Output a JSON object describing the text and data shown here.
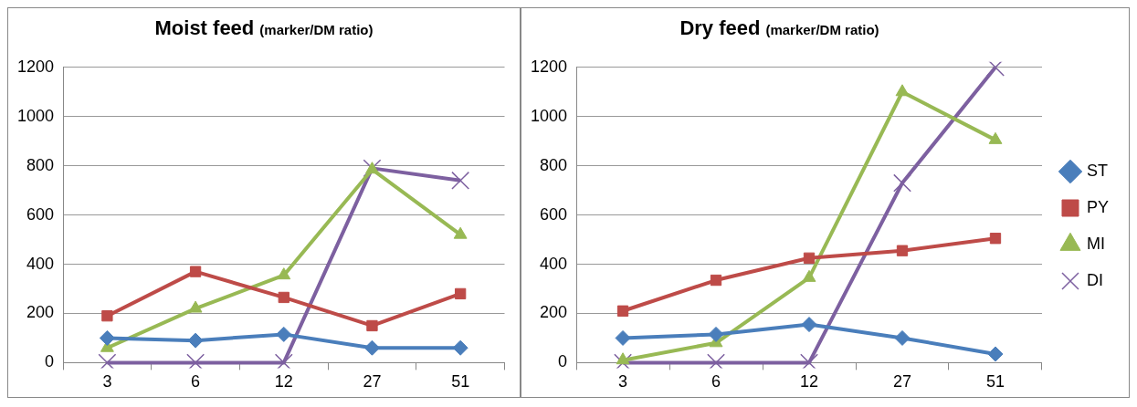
{
  "chart_data": [
    {
      "type": "line",
      "title": "Moist feed",
      "subtitle": "(marker/DM ratio)",
      "categories": [
        "3",
        "6",
        "12",
        "27",
        "51"
      ],
      "series": [
        {
          "color": "#4a7ebb",
          "marker": "diamond",
          "values": [
            100,
            90,
            115,
            60,
            60
          ]
        },
        {
          "color": "#be4b48",
          "marker": "square",
          "values": [
            190,
            370,
            265,
            150,
            280
          ]
        },
        {
          "color": "#98b954",
          "marker": "triangle",
          "values": [
            60,
            220,
            355,
            785,
            520
          ]
        },
        {
          "color": "#7d60a0",
          "marker": "cross",
          "values": [
            0,
            0,
            0,
            790,
            740
          ]
        }
      ],
      "ylim": [
        0,
        1200
      ],
      "yticks": [
        0,
        200,
        400,
        600,
        800,
        1000,
        1200
      ],
      "grid": "y",
      "legend": false
    },
    {
      "type": "line",
      "title": "Dry feed",
      "subtitle": "(marker/DM ratio)",
      "categories": [
        "3",
        "6",
        "12",
        "27",
        "51"
      ],
      "series": [
        {
          "name": "ST",
          "color": "#4a7ebb",
          "marker": "diamond",
          "values": [
            100,
            115,
            155,
            100,
            35
          ]
        },
        {
          "name": "PY",
          "color": "#be4b48",
          "marker": "square",
          "values": [
            210,
            335,
            425,
            455,
            505
          ]
        },
        {
          "name": "MI",
          "color": "#98b954",
          "marker": "triangle",
          "values": [
            10,
            80,
            345,
            1100,
            905
          ]
        },
        {
          "name": "DI",
          "color": "#7d60a0",
          "marker": "cross",
          "values": [
            0,
            0,
            0,
            730,
            1200
          ]
        }
      ],
      "ylim": [
        0,
        1200
      ],
      "yticks": [
        0,
        200,
        400,
        600,
        800,
        1000,
        1200
      ],
      "grid": "y",
      "legend": "right"
    }
  ]
}
